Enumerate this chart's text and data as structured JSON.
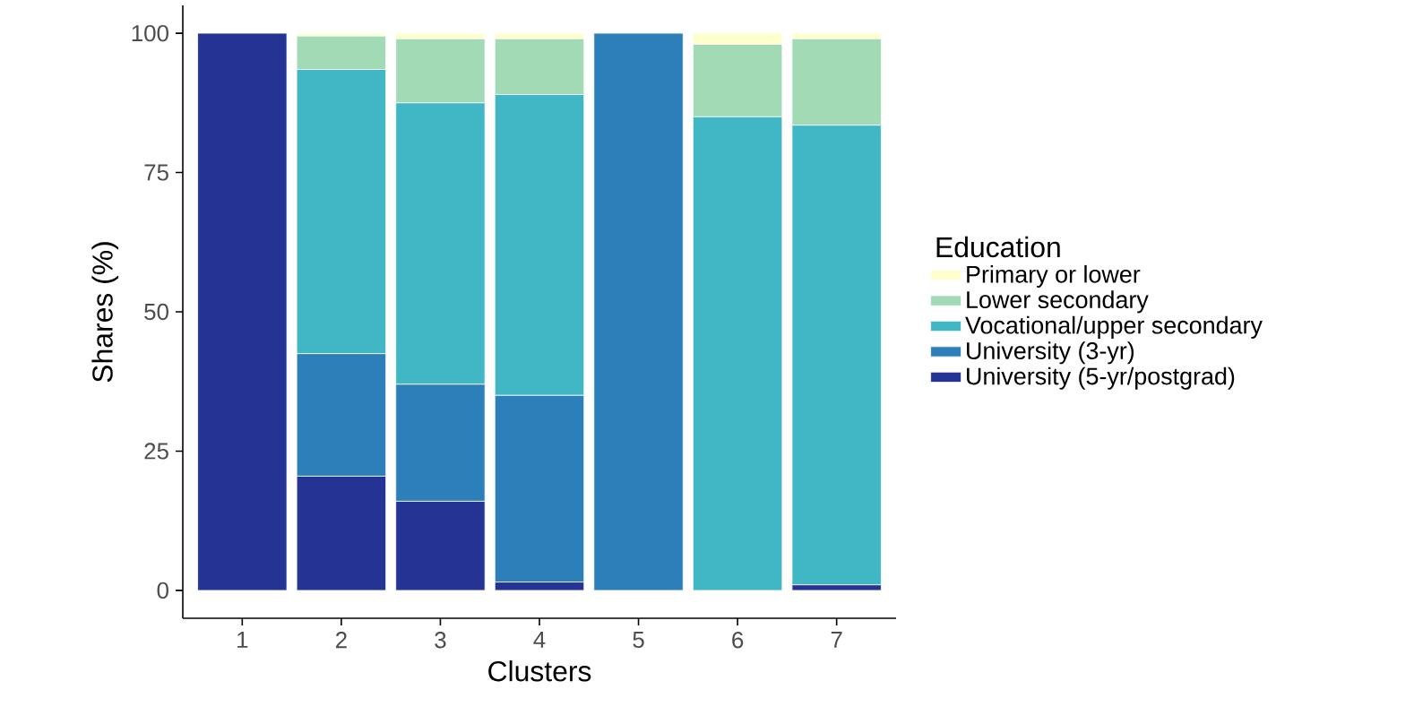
{
  "chart_data": {
    "type": "bar",
    "stacked": true,
    "xlabel": "Clusters",
    "ylabel": "Shares (%)",
    "legend_title": "Education",
    "legend": "right",
    "categories": [
      "1",
      "2",
      "3",
      "4",
      "5",
      "6",
      "7"
    ],
    "ylim": [
      -5,
      105
    ],
    "yticks": [
      0,
      25,
      50,
      75,
      100
    ],
    "grid": false,
    "series": [
      {
        "name": "University (5-yr/postgrad)",
        "color": "#253494",
        "values": [
          100,
          20.5,
          16,
          1.5,
          0,
          0,
          1
        ]
      },
      {
        "name": "University (3-yr)",
        "color": "#2c7fb8",
        "values": [
          0,
          22,
          21,
          33.5,
          100,
          0,
          0
        ]
      },
      {
        "name": "Vocational/upper secondary",
        "color": "#41b6c4",
        "values": [
          0,
          51,
          50.5,
          54,
          0,
          85,
          82.5
        ]
      },
      {
        "name": "Lower secondary",
        "color": "#a1dab4",
        "values": [
          0,
          6,
          11.5,
          10,
          0,
          13,
          15.5
        ]
      },
      {
        "name": "Primary or lower",
        "color": "#ffffcc",
        "values": [
          0,
          0.5,
          1,
          1,
          0,
          2,
          1
        ]
      }
    ]
  }
}
